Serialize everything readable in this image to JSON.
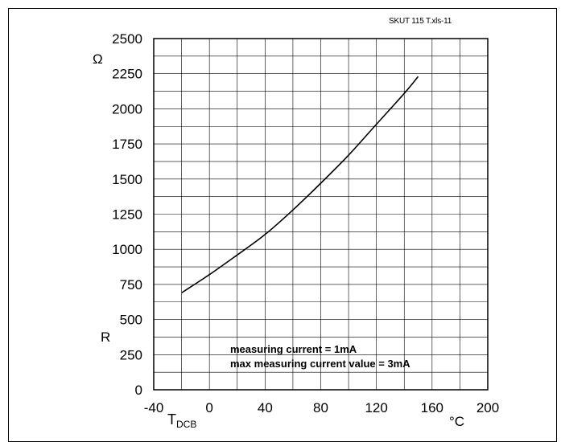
{
  "figure_ref": "SKUT 115 T.xls-11",
  "note": {
    "line1": "measuring current = 1mA",
    "line2": "max measuring current value = 3mA"
  },
  "chart_data": {
    "type": "line",
    "title": "",
    "xlabel": "T",
    "xlabel_sub": "DCB",
    "x_unit": "°C",
    "ylabel": "R",
    "y_unit": "Ω",
    "xlim": [
      -40,
      200
    ],
    "ylim": [
      0,
      2500
    ],
    "x_ticks": [
      -40,
      0,
      40,
      80,
      120,
      160,
      200
    ],
    "y_ticks": [
      0,
      250,
      500,
      750,
      1000,
      1250,
      1500,
      1750,
      2000,
      2250,
      2500
    ],
    "grid": true,
    "series": [
      {
        "x": [
          -20,
          0,
          20,
          40,
          60,
          80,
          100,
          120,
          140,
          150
        ],
        "y": [
          690,
          820,
          960,
          1105,
          1280,
          1470,
          1670,
          1890,
          2110,
          2230
        ]
      }
    ]
  }
}
